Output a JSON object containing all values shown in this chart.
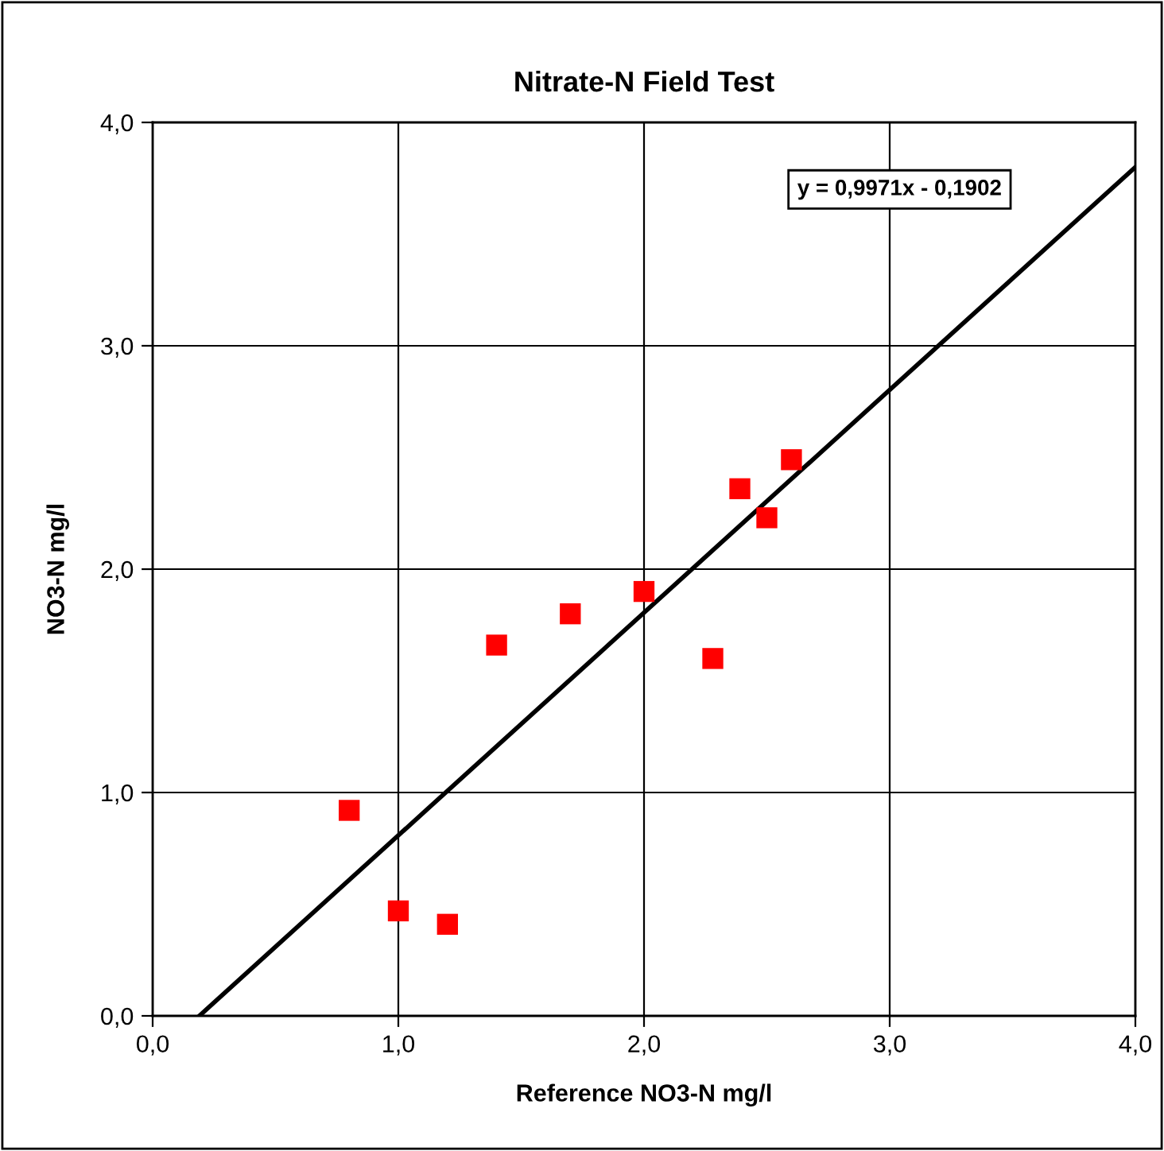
{
  "chart_data": {
    "type": "scatter",
    "title": "Nitrate-N Field Test",
    "xlabel": "Reference NO3-N mg/l",
    "ylabel": "NO3-N mg/l",
    "annotations": [
      "y = 0,9971x - 0,1902"
    ],
    "xlim": [
      0,
      4
    ],
    "ylim": [
      0,
      4
    ],
    "xticks": [
      {
        "value": 0,
        "label": "0,0"
      },
      {
        "value": 1,
        "label": "1,0"
      },
      {
        "value": 2,
        "label": "2,0"
      },
      {
        "value": 3,
        "label": "3,0"
      },
      {
        "value": 4,
        "label": "4,0"
      }
    ],
    "yticks": [
      {
        "value": 0,
        "label": "0,0"
      },
      {
        "value": 1,
        "label": "1,0"
      },
      {
        "value": 2,
        "label": "2,0"
      },
      {
        "value": 3,
        "label": "3,0"
      },
      {
        "value": 4,
        "label": "4,0"
      }
    ],
    "grid": true,
    "legend": false,
    "series": [
      {
        "color": "#ff0000",
        "marker": "square",
        "x": [
          0.8,
          1.0,
          1.2,
          1.4,
          1.7,
          2.0,
          2.28,
          2.39,
          2.5,
          2.6
        ],
        "values": [
          0.92,
          0.47,
          0.41,
          1.66,
          1.8,
          1.9,
          1.6,
          2.36,
          2.23,
          2.49
        ]
      },
      {
        "type": "line",
        "color": "#000000",
        "marker": "none",
        "line_style": "solid",
        "x": [
          0.19,
          4.0
        ],
        "values": [
          0.0,
          3.8
        ]
      }
    ]
  }
}
